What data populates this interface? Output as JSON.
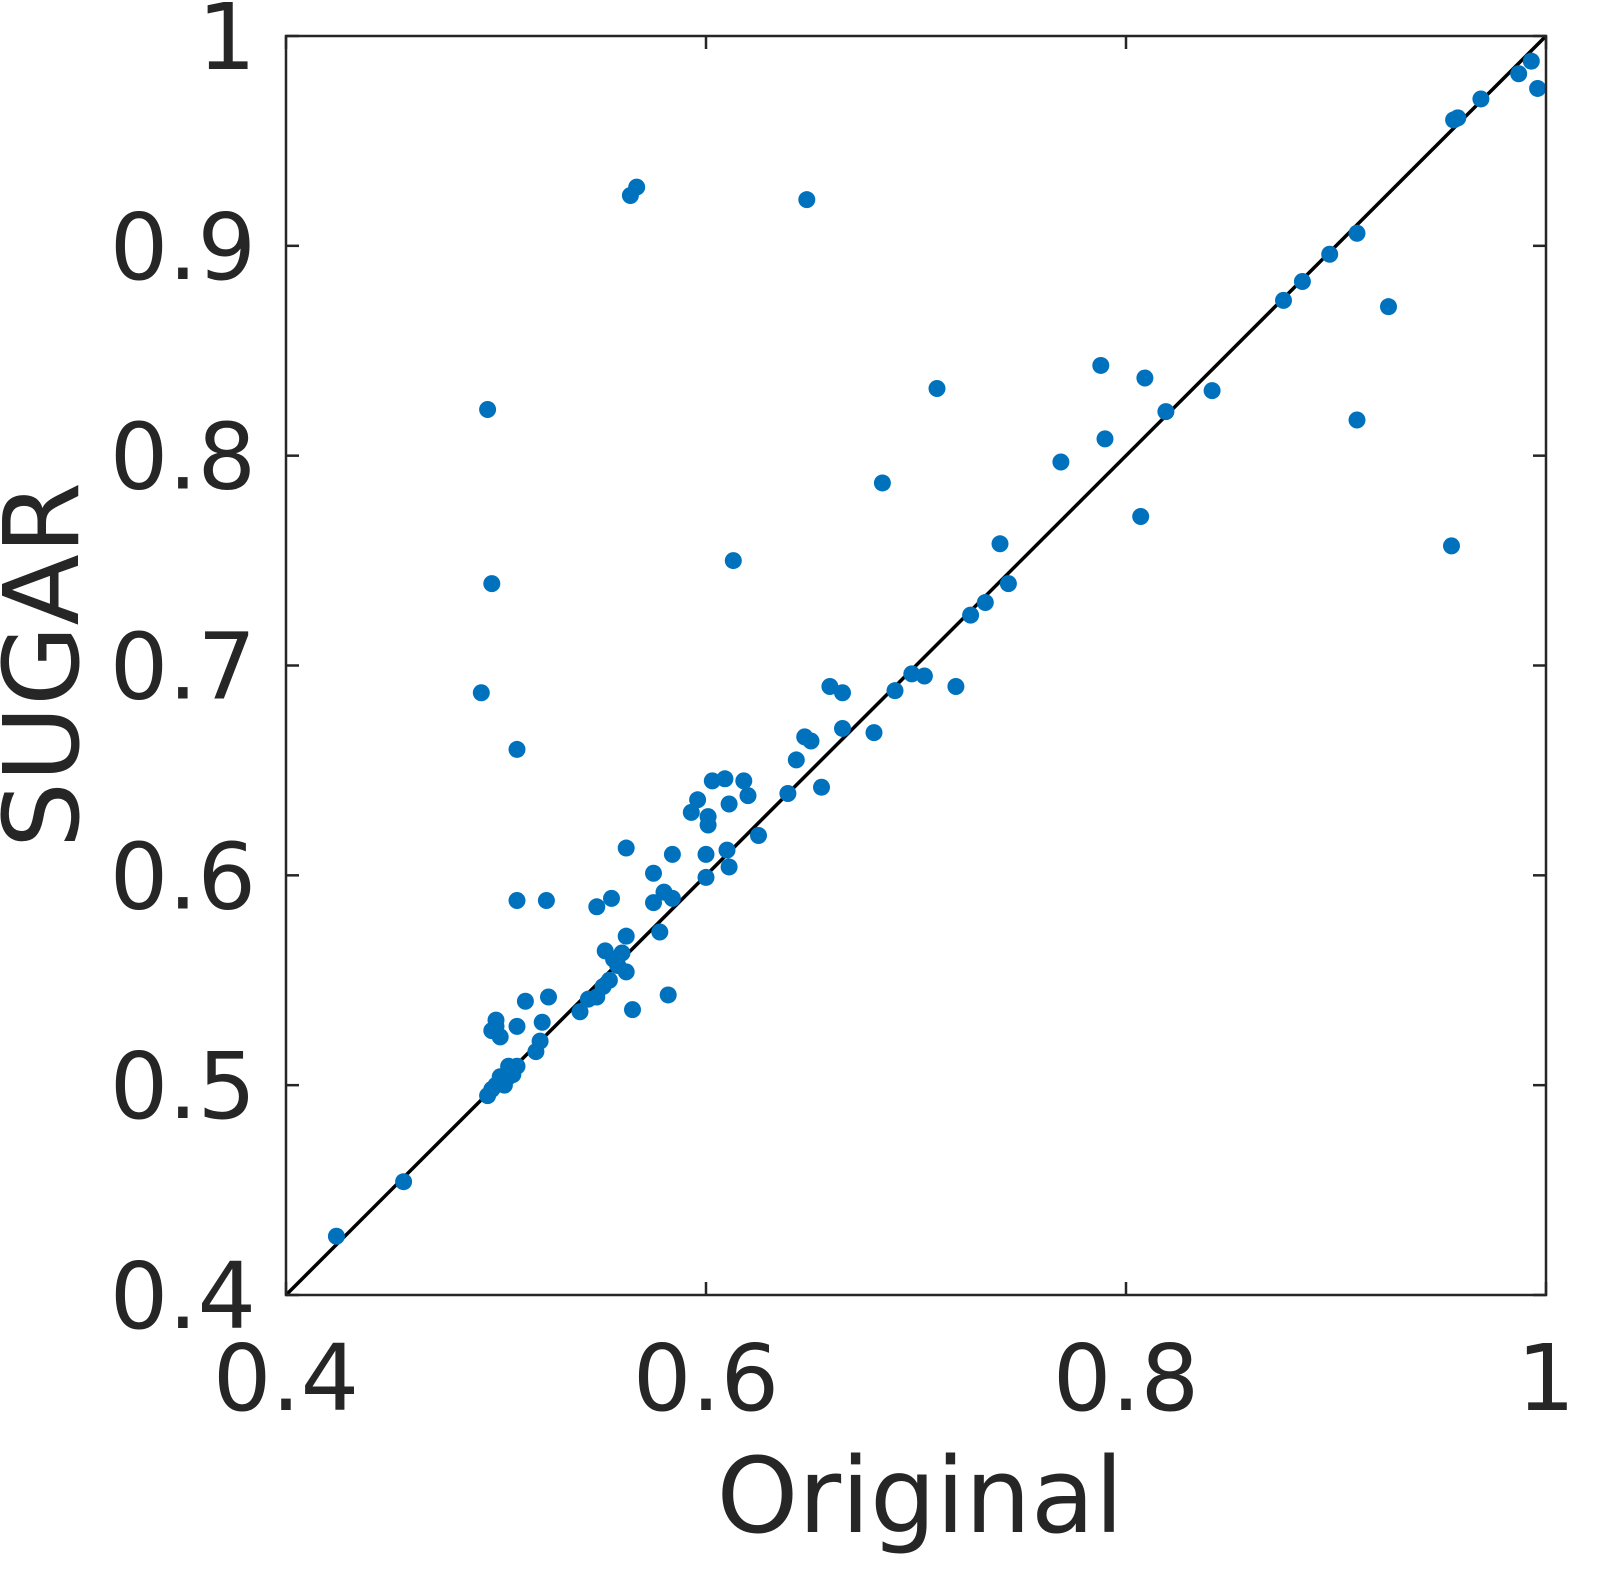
{
  "chart_data": {
    "type": "scatter",
    "xlabel": "Original",
    "ylabel": "SUGAR",
    "xlim": [
      0.4,
      1
    ],
    "ylim": [
      0.4,
      1
    ],
    "xticks": [
      "0.4",
      "0.6",
      "0.8",
      "1"
    ],
    "yticks": [
      "0.4",
      "0.5",
      "0.6",
      "0.7",
      "0.8",
      "0.9",
      "1"
    ],
    "grid": false,
    "reference_line": {
      "from": [
        0.4,
        0.4
      ],
      "to": [
        1,
        1
      ]
    },
    "colors": {
      "marker": "#0072BD",
      "line": "#000000",
      "axes": "#262626"
    },
    "series": [
      {
        "points": [
          [
            0.424,
            0.428
          ],
          [
            0.456,
            0.454
          ],
          [
            0.496,
            0.495
          ],
          [
            0.498,
            0.498
          ],
          [
            0.5,
            0.5
          ],
          [
            0.502,
            0.504
          ],
          [
            0.504,
            0.5
          ],
          [
            0.506,
            0.504
          ],
          [
            0.508,
            0.505
          ],
          [
            0.51,
            0.509
          ],
          [
            0.506,
            0.509
          ],
          [
            0.498,
            0.526
          ],
          [
            0.5,
            0.531
          ],
          [
            0.502,
            0.523
          ],
          [
            0.5,
            0.528
          ],
          [
            0.51,
            0.528
          ],
          [
            0.514,
            0.54
          ],
          [
            0.519,
            0.516
          ],
          [
            0.521,
            0.521
          ],
          [
            0.522,
            0.53
          ],
          [
            0.525,
            0.542
          ],
          [
            0.51,
            0.588
          ],
          [
            0.524,
            0.588
          ],
          [
            0.54,
            0.535
          ],
          [
            0.544,
            0.541
          ],
          [
            0.548,
            0.542
          ],
          [
            0.551,
            0.547
          ],
          [
            0.554,
            0.55
          ],
          [
            0.548,
            0.585
          ],
          [
            0.555,
            0.589
          ],
          [
            0.552,
            0.564
          ],
          [
            0.556,
            0.56
          ],
          [
            0.558,
            0.557
          ],
          [
            0.56,
            0.563
          ],
          [
            0.562,
            0.554
          ],
          [
            0.562,
            0.571
          ],
          [
            0.565,
            0.536
          ],
          [
            0.562,
            0.613
          ],
          [
            0.575,
            0.601
          ],
          [
            0.575,
            0.587
          ],
          [
            0.578,
            0.573
          ],
          [
            0.58,
            0.592
          ],
          [
            0.582,
            0.543
          ],
          [
            0.584,
            0.589
          ],
          [
            0.584,
            0.61
          ],
          [
            0.593,
            0.63
          ],
          [
            0.596,
            0.636
          ],
          [
            0.6,
            0.61
          ],
          [
            0.6,
            0.599
          ],
          [
            0.601,
            0.624
          ],
          [
            0.601,
            0.628
          ],
          [
            0.603,
            0.645
          ],
          [
            0.609,
            0.646
          ],
          [
            0.61,
            0.612
          ],
          [
            0.611,
            0.604
          ],
          [
            0.611,
            0.634
          ],
          [
            0.618,
            0.645
          ],
          [
            0.62,
            0.638
          ],
          [
            0.625,
            0.619
          ],
          [
            0.613,
            0.75
          ],
          [
            0.639,
            0.639
          ],
          [
            0.643,
            0.655
          ],
          [
            0.647,
            0.666
          ],
          [
            0.65,
            0.664
          ],
          [
            0.655,
            0.642
          ],
          [
            0.659,
            0.69
          ],
          [
            0.665,
            0.67
          ],
          [
            0.665,
            0.687
          ],
          [
            0.68,
            0.668
          ],
          [
            0.684,
            0.787
          ],
          [
            0.69,
            0.688
          ],
          [
            0.698,
            0.696
          ],
          [
            0.704,
            0.695
          ],
          [
            0.71,
            0.832
          ],
          [
            0.719,
            0.69
          ],
          [
            0.726,
            0.724
          ],
          [
            0.733,
            0.73
          ],
          [
            0.74,
            0.758
          ],
          [
            0.744,
            0.739
          ],
          [
            0.769,
            0.797
          ],
          [
            0.788,
            0.843
          ],
          [
            0.79,
            0.808
          ],
          [
            0.807,
            0.771
          ],
          [
            0.809,
            0.837
          ],
          [
            0.819,
            0.821
          ],
          [
            0.841,
            0.831
          ],
          [
            0.875,
            0.874
          ],
          [
            0.884,
            0.883
          ],
          [
            0.897,
            0.896
          ],
          [
            0.91,
            0.906
          ],
          [
            0.91,
            0.817
          ],
          [
            0.925,
            0.871
          ],
          [
            0.956,
            0.96
          ],
          [
            0.958,
            0.961
          ],
          [
            0.955,
            0.757
          ],
          [
            0.969,
            0.97
          ],
          [
            0.987,
            0.982
          ],
          [
            0.993,
            0.988
          ],
          [
            0.996,
            0.975
          ],
          [
            0.496,
            0.822
          ],
          [
            0.498,
            0.739
          ],
          [
            0.493,
            0.687
          ],
          [
            0.51,
            0.66
          ],
          [
            0.564,
            0.924
          ],
          [
            0.567,
            0.928
          ],
          [
            0.648,
            0.922
          ]
        ]
      }
    ]
  }
}
